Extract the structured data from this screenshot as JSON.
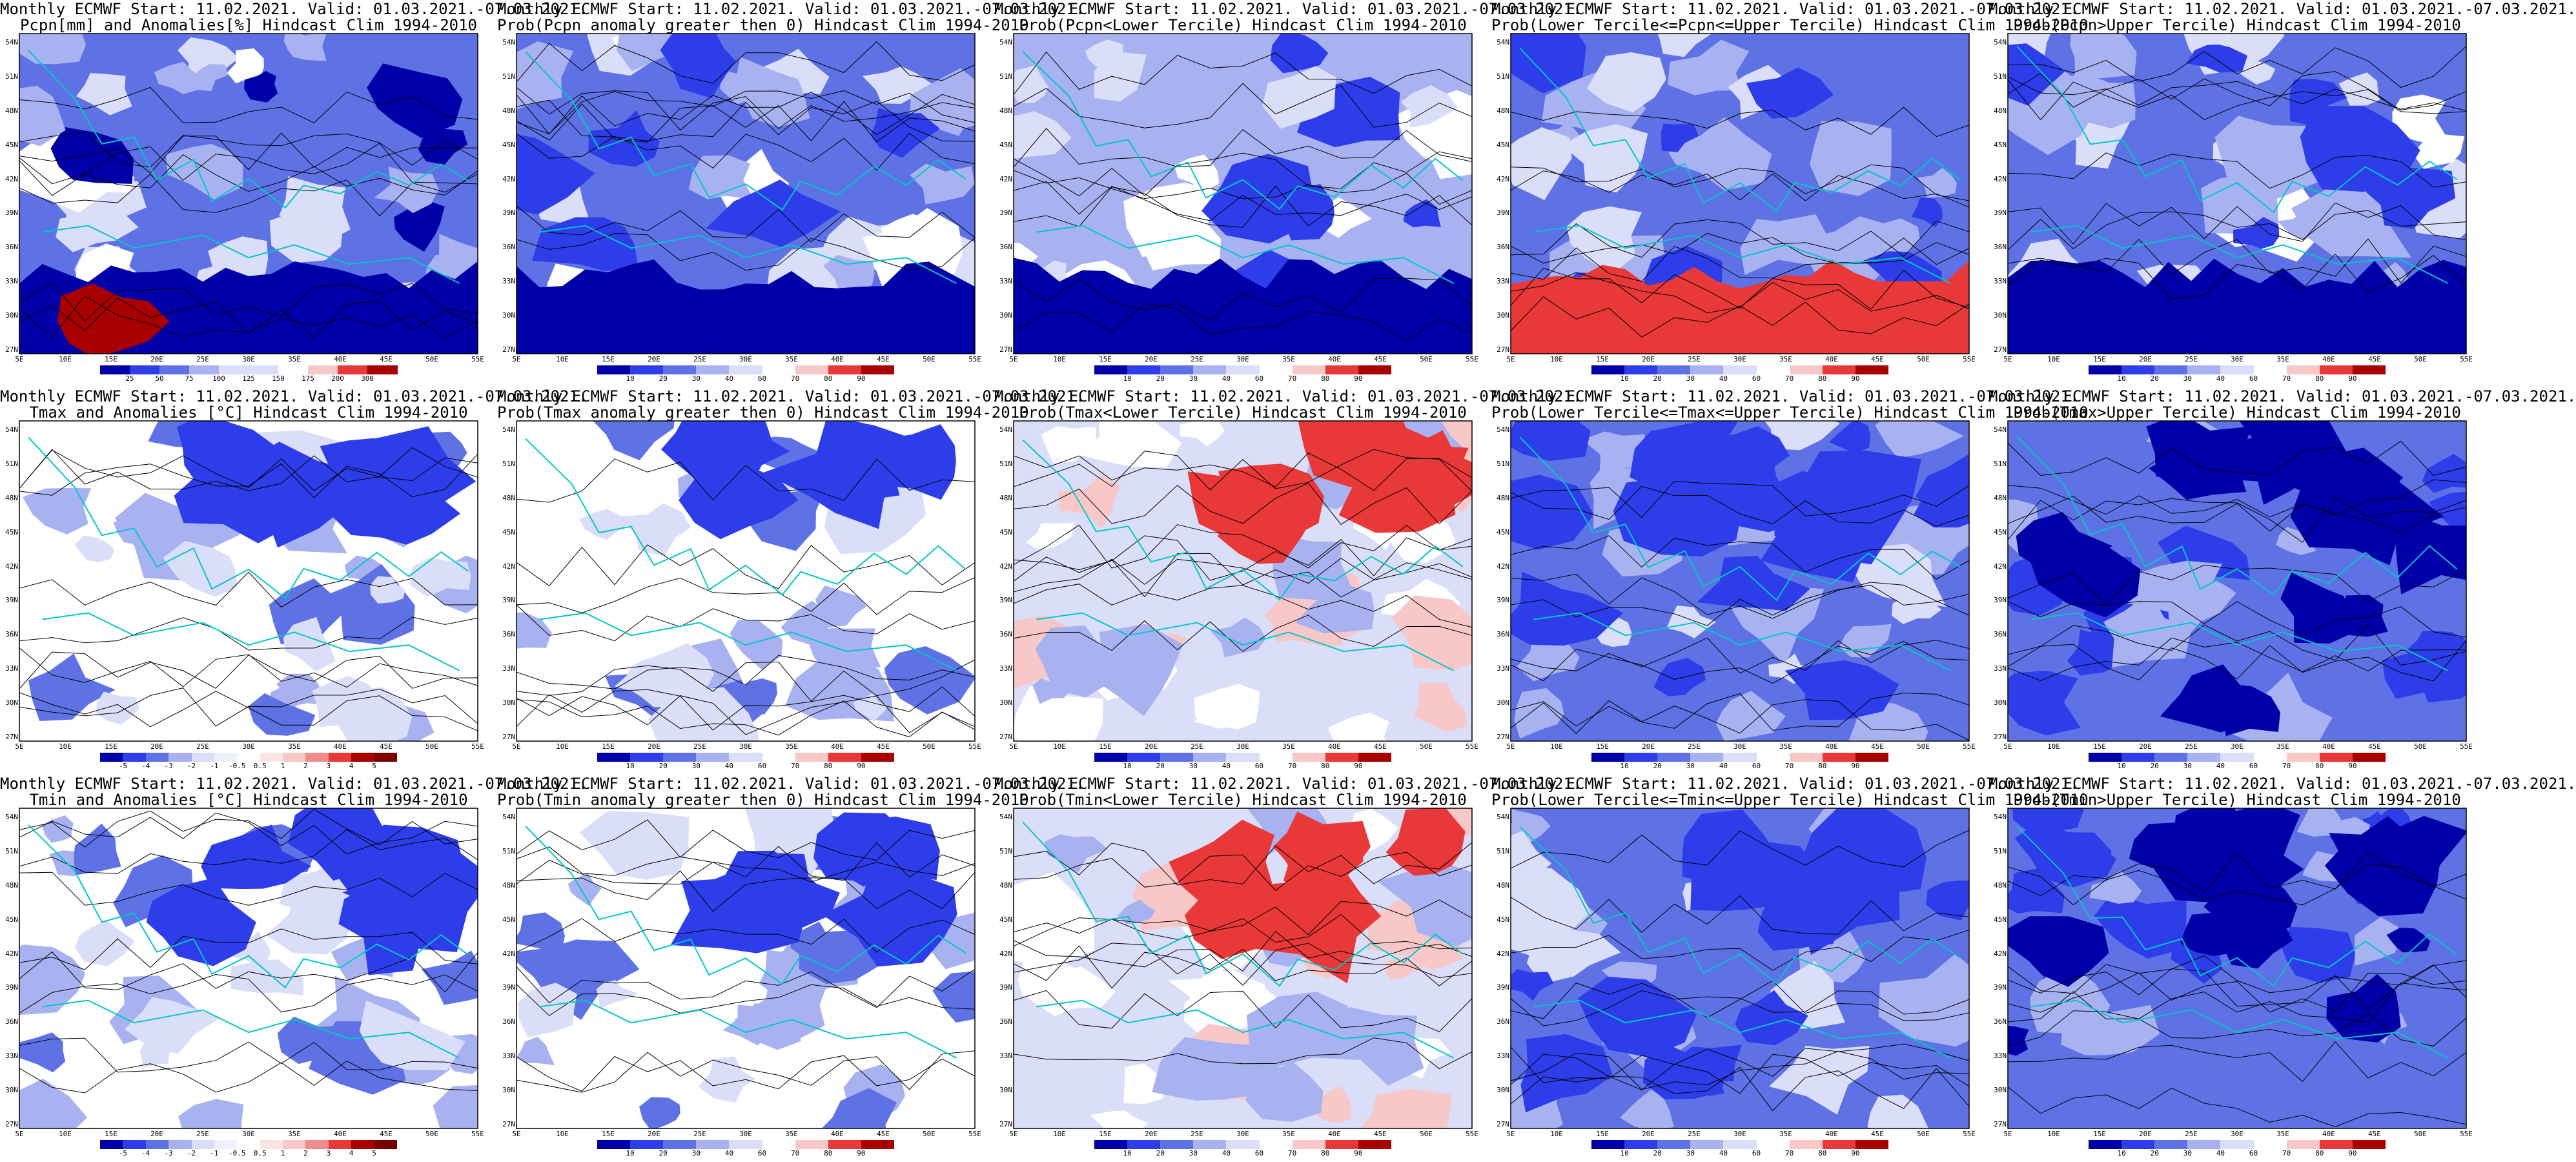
{
  "colors": {
    "deep_blue": "#0000a8",
    "blue": "#2d3dea",
    "mid_blue": "#5e72e6",
    "light_blue": "#a8b2f0",
    "pale_blue": "#dadef8",
    "white": "#ffffff",
    "pale_red": "#f8c8c8",
    "red": "#e83838",
    "dark_red": "#a80000",
    "coast": "#00c8c8",
    "contour": "#000000"
  },
  "map_axes": {
    "lat_labels": [
      "54N",
      "51N",
      "48N",
      "45N",
      "42N",
      "39N",
      "36N",
      "33N",
      "30N",
      "27N"
    ],
    "lon_labels": [
      "5E",
      "10E",
      "15E",
      "20E",
      "25E",
      "30E",
      "35E",
      "40E",
      "45E",
      "50E",
      "55E"
    ]
  },
  "panels": [
    {
      "title_line1": "Monthly ECMWF Start: 11.02.2021. Valid: 01.03.2021.-07.03.2021.",
      "title_line2": "Pcpn[mm] and Anomalies[%] Hindcast Clim 1994-2010",
      "colorbar": [
        "25",
        "50",
        "75",
        "100",
        "125",
        "150",
        "175",
        "200",
        "300"
      ],
      "style": "precip_anom"
    },
    {
      "title_line1": "Monthly ECMWF Start: 11.02.2021. Valid: 01.03.2021.-07.03.2021.",
      "title_line2": "Prob(Pcpn anomaly greater then 0) Hindcast Clim 1994-2010",
      "colorbar": [
        "10",
        "20",
        "30",
        "40",
        "60",
        "70",
        "80",
        "90"
      ],
      "style": "prob_blue"
    },
    {
      "title_line1": "Monthly ECMWF Start: 11.02.2021. Valid: 01.03.2021.-07.03.2021.",
      "title_line2": "Prob(Pcpn<Lower Tercile) Hindcast Clim 1994-2010",
      "colorbar": [
        "10",
        "20",
        "30",
        "40",
        "60",
        "70",
        "80",
        "90"
      ],
      "style": "prob_lower_pcpn"
    },
    {
      "title_line1": "Monthly ECMWF Start: 11.02.2021. Valid: 01.03.2021.-07.03.2021.",
      "title_line2": "Prob(Lower Tercile<=Pcpn<=Upper Tercile) Hindcast Clim 1994-2010",
      "colorbar": [
        "10",
        "20",
        "30",
        "40",
        "60",
        "70",
        "80",
        "90"
      ],
      "style": "prob_middle_pcpn"
    },
    {
      "title_line1": "Monthly ECMWF Start: 11.02.2021. Valid: 01.03.2021.-07.03.2021.",
      "title_line2": "Prob(Pcpn>Upper Tercile) Hindcast Clim 1994-2010",
      "colorbar": [
        "10",
        "20",
        "30",
        "40",
        "60",
        "70",
        "80",
        "90"
      ],
      "style": "prob_blue"
    },
    {
      "title_line1": "Monthly ECMWF Start: 11.02.2021. Valid: 01.03.2021.-07.03.2021.",
      "title_line2": "Tmax and Anomalies [°C] Hindcast Clim 1994-2010",
      "colorbar": [
        "-5",
        "-4",
        "-3",
        "-2",
        "-1",
        "-0.5",
        "0.5",
        "1",
        "2",
        "3",
        "4",
        "5"
      ],
      "style": "temp_anom"
    },
    {
      "title_line1": "Monthly ECMWF Start: 11.02.2021. Valid: 01.03.2021.-07.03.2021.",
      "title_line2": "Prob(Tmax anomaly greater then 0) Hindcast Clim 1994-2010",
      "colorbar": [
        "10",
        "20",
        "30",
        "40",
        "60",
        "70",
        "80",
        "90"
      ],
      "style": "prob_blue_temp"
    },
    {
      "title_line1": "Monthly ECMWF Start: 11.02.2021. Valid: 01.03.2021.-07.03.2021.",
      "title_line2": "Prob(Tmax<Lower Tercile) Hindcast Clim 1994-2010",
      "colorbar": [
        "10",
        "20",
        "30",
        "40",
        "60",
        "70",
        "80",
        "90"
      ],
      "style": "prob_lower_temp"
    },
    {
      "title_line1": "Monthly ECMWF Start: 11.02.2021. Valid: 01.03.2021.-07.03.2021.",
      "title_line2": "Prob(Lower Tercile<=Tmax<=Upper Tercile) Hindcast Clim 1994-2010",
      "colorbar": [
        "10",
        "20",
        "30",
        "40",
        "60",
        "70",
        "80",
        "90"
      ],
      "style": "prob_mid_temp"
    },
    {
      "title_line1": "Monthly ECMWF Start: 11.02.2021. Valid: 01.03.2021.-07.03.2021.",
      "title_line2": "Prob(Tmax>Upper Tercile) Hindcast Clim 1994-2010",
      "colorbar": [
        "10",
        "20",
        "30",
        "40",
        "60",
        "70",
        "80",
        "90"
      ],
      "style": "prob_upper_temp"
    },
    {
      "title_line1": "Monthly ECMWF Start: 11.02.2021. Valid: 01.03.2021.-07.03.2021.",
      "title_line2": "Tmin and Anomalies [°C] Hindcast Clim 1994-2010",
      "colorbar": [
        "-5",
        "-4",
        "-3",
        "-2",
        "-1",
        "-0.5",
        "0.5",
        "1",
        "2",
        "3",
        "4",
        "5"
      ],
      "style": "temp_anom"
    },
    {
      "title_line1": "Monthly ECMWF Start: 11.02.2021. Valid: 01.03.2021.-07.03.2021.",
      "title_line2": "Prob(Tmin anomaly greater then 0) Hindcast Clim 1994-2010",
      "colorbar": [
        "10",
        "20",
        "30",
        "40",
        "60",
        "70",
        "80",
        "90"
      ],
      "style": "prob_blue_temp"
    },
    {
      "title_line1": "Monthly ECMWF Start: 11.02.2021. Valid: 01.03.2021.-07.03.2021.",
      "title_line2": "Prob(Tmin<Lower Tercile) Hindcast Clim 1994-2010",
      "colorbar": [
        "10",
        "20",
        "30",
        "40",
        "60",
        "70",
        "80",
        "90"
      ],
      "style": "prob_lower_temp"
    },
    {
      "title_line1": "Monthly ECMWF Start: 11.02.2021. Valid: 01.03.2021.-07.03.2021.",
      "title_line2": "Prob(Lower Tercile<=Tmin<=Upper Tercile) Hindcast Clim 1994-2010",
      "colorbar": [
        "10",
        "20",
        "30",
        "40",
        "60",
        "70",
        "80",
        "90"
      ],
      "style": "prob_mid_temp"
    },
    {
      "title_line1": "Monthly ECMWF Start: 11.02.2021. Valid: 01.03.2021.-07.03.2021.",
      "title_line2": "Prob(Tmin>Upper Tercile) Hindcast Clim 1994-2010",
      "colorbar": [
        "10",
        "20",
        "30",
        "40",
        "60",
        "70",
        "80",
        "90"
      ],
      "style": "prob_upper_temp"
    }
  ]
}
